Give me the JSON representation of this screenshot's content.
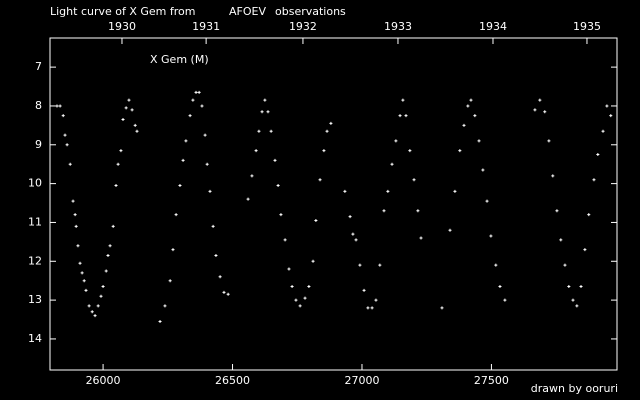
{
  "chart_data": {
    "type": "scatter",
    "title": "Light curve of X Gem from",
    "title_source": "AFOEV",
    "title_end": "observations",
    "legend": "X Gem (M)",
    "credit": "drawn by ooruri",
    "color": "#ffffff",
    "title_color": "#ffffff",
    "source_color": "#ffff00",
    "credit_color": "#00ffff",
    "xlim": [
      25795,
      27985
    ],
    "xticks": [
      26000,
      26500,
      27000,
      27500
    ],
    "x2ticks": [
      {
        "value": 26073,
        "label": "1930"
      },
      {
        "value": 26398,
        "label": "1931"
      },
      {
        "value": 26772,
        "label": "1932"
      },
      {
        "value": 27139,
        "label": "1933"
      },
      {
        "value": 27506,
        "label": "1934"
      },
      {
        "value": 27869,
        "label": "1935"
      }
    ],
    "ylim": [
      14.8,
      6.25
    ],
    "yticks": [
      7,
      8,
      9,
      10,
      11,
      12,
      13,
      14
    ],
    "x": [
      25822,
      25834,
      25846,
      25853,
      25861,
      25873,
      25884,
      25892,
      25896,
      25903,
      25911,
      25919,
      25927,
      25934,
      25946,
      25958,
      25969,
      25981,
      25992,
      26000,
      26012,
      26019,
      26027,
      26039,
      26050,
      26058,
      26069,
      26077,
      26089,
      26100,
      26112,
      26124,
      26131,
      26220,
      26239,
      26259,
      26270,
      26282,
      26297,
      26309,
      26320,
      26336,
      26347,
      26359,
      26371,
      26382,
      26394,
      26402,
      26413,
      26425,
      26436,
      26452,
      26467,
      26483,
      26560,
      26575,
      26591,
      26602,
      26614,
      26625,
      26637,
      26649,
      26664,
      26676,
      26687,
      26703,
      26718,
      26730,
      26745,
      26761,
      26780,
      26795,
      26811,
      26822,
      26838,
      26853,
      26865,
      26880,
      26934,
      26954,
      26965,
      26977,
      26992,
      27008,
      27023,
      27039,
      27054,
      27069,
      27085,
      27100,
      27116,
      27131,
      27147,
      27158,
      27170,
      27185,
      27201,
      27216,
      27228,
      27309,
      27340,
      27359,
      27378,
      27394,
      27409,
      27421,
      27436,
      27452,
      27467,
      27483,
      27498,
      27517,
      27533,
      27552,
      27668,
      27687,
      27706,
      27722,
      27737,
      27753,
      27768,
      27784,
      27799,
      27815,
      27830,
      27846,
      27861,
      27876,
      27896,
      27911,
      27931,
      27946,
      27961
    ],
    "values": [
      8.0,
      8.0,
      8.25,
      8.75,
      9.0,
      9.5,
      10.45,
      10.8,
      11.1,
      11.6,
      12.05,
      12.3,
      12.5,
      12.75,
      13.15,
      13.3,
      13.4,
      13.15,
      12.9,
      12.65,
      12.25,
      11.85,
      11.6,
      11.1,
      10.05,
      9.5,
      9.15,
      8.35,
      8.05,
      7.85,
      8.1,
      8.5,
      8.65,
      13.55,
      13.15,
      12.5,
      11.7,
      10.8,
      10.05,
      9.4,
      8.9,
      8.25,
      7.85,
      7.65,
      7.65,
      8.0,
      8.75,
      9.5,
      10.2,
      11.1,
      11.85,
      12.4,
      12.8,
      12.85,
      10.4,
      9.8,
      9.15,
      8.65,
      8.15,
      7.85,
      8.15,
      8.65,
      9.4,
      10.05,
      10.8,
      11.45,
      12.2,
      12.65,
      13.0,
      13.15,
      12.95,
      12.65,
      12.0,
      10.95,
      9.9,
      9.15,
      8.65,
      8.45,
      10.2,
      10.85,
      11.3,
      11.45,
      12.1,
      12.75,
      13.2,
      13.2,
      13.0,
      12.1,
      10.7,
      10.2,
      9.5,
      8.9,
      8.25,
      7.85,
      8.25,
      9.15,
      9.9,
      10.7,
      11.4,
      13.2,
      11.2,
      10.2,
      9.15,
      8.5,
      8.0,
      7.85,
      8.25,
      8.9,
      9.65,
      10.45,
      11.35,
      12.1,
      12.65,
      13.0,
      8.1,
      7.85,
      8.15,
      8.9,
      9.8,
      10.7,
      11.45,
      12.1,
      12.65,
      13.0,
      13.15,
      12.65,
      11.7,
      10.8,
      9.9,
      9.25,
      8.65,
      8.0,
      8.25
    ]
  }
}
